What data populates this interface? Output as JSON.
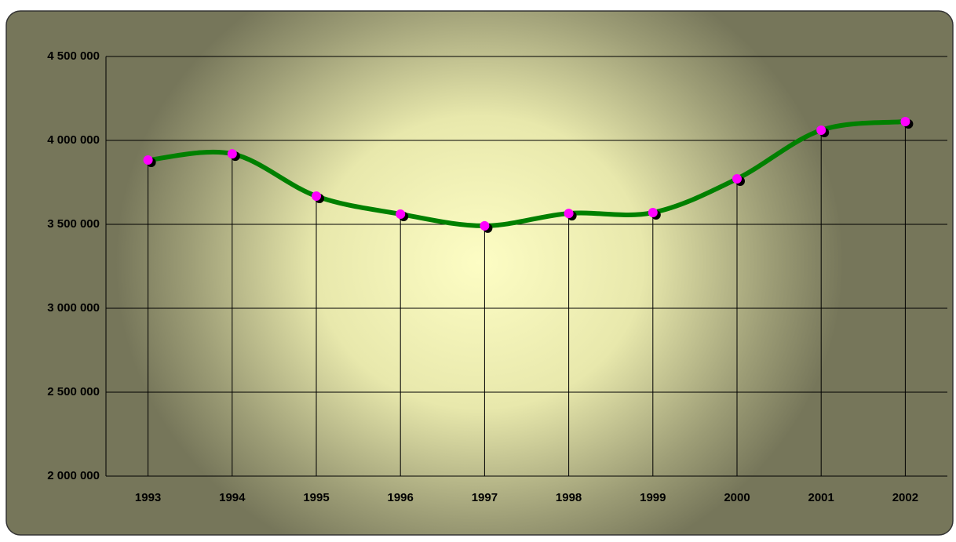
{
  "chart_data": {
    "type": "line",
    "categories": [
      "1993",
      "1994",
      "1995",
      "1996",
      "1997",
      "1998",
      "1999",
      "2000",
      "2001",
      "2002"
    ],
    "series": [
      {
        "color": "#008000",
        "marker_color": "#ff00ff",
        "values": [
          3883000,
          3920000,
          3668000,
          3561000,
          3491000,
          3565000,
          3570000,
          3771000,
          4061000,
          4112000
        ]
      }
    ],
    "ylim": [
      2000000,
      4500000
    ],
    "yticks": [
      {
        "value": 2000000,
        "label": "2 000 000"
      },
      {
        "value": 2500000,
        "label": "2 500 000"
      },
      {
        "value": 3000000,
        "label": "3 000 000"
      },
      {
        "value": 3500000,
        "label": "3 500 000"
      },
      {
        "value": 4000000,
        "label": "4 000 000"
      },
      {
        "value": 4500000,
        "label": "4 500 000"
      }
    ],
    "grid": true,
    "smooth": true,
    "drop_lines": true
  }
}
